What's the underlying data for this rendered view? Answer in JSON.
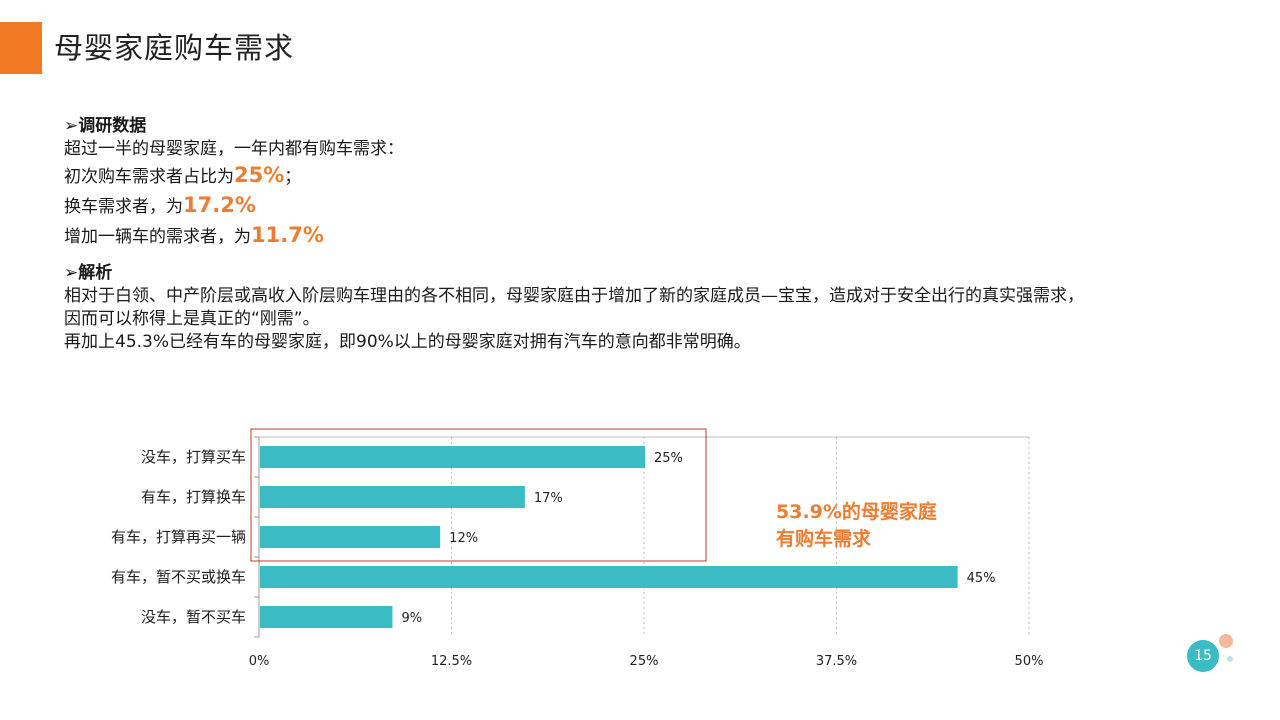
{
  "slide": {
    "title": "母婴家庭购车需求",
    "page_number": "15"
  },
  "survey": {
    "heading": "➢调研数据",
    "intro": "超过一半的母婴家庭，一年内都有购车需求：",
    "lines": [
      {
        "prefix": "初次购车需求者占比为",
        "value": "25%",
        "suffix": "；"
      },
      {
        "prefix": "换车需求者，为",
        "value": "17.2%",
        "suffix": ""
      },
      {
        "prefix": "增加一辆车的需求者，为",
        "value": "11.7%",
        "suffix": ""
      }
    ]
  },
  "analysis": {
    "heading": "➢解析",
    "lines": [
      "相对于白领、中产阶层或高收入阶层购车理由的各不相同，母婴家庭由于增加了新的家庭成员—宝宝，造成对于安全出行的真实强需求，",
      "因而可以称得上是真正的“刚需”。",
      "再加上45.3%已经有车的母婴家庭，即90%以上的母婴家庭对拥有汽车的意向都非常明确。"
    ]
  },
  "chart_data": {
    "type": "bar",
    "orientation": "horizontal",
    "categories": [
      "没车，打算买车",
      "有车，打算换车",
      "有车，打算再买一辆",
      "有车，暂不买或换车",
      "没车，暂不买车"
    ],
    "values": [
      25,
      17.2,
      11.7,
      45.3,
      8.6
    ],
    "data_labels": [
      "25%",
      "17%",
      "12%",
      "45%",
      "9%"
    ],
    "xlim": [
      0,
      50
    ],
    "x_ticks": [
      0,
      12.5,
      25,
      37.5,
      50
    ],
    "x_tick_labels": [
      "0%",
      "12.5%",
      "25%",
      "37.5%",
      "50%"
    ],
    "grid": "vertical dashed",
    "bar_color": "#3bbcc4",
    "highlight_box_color": "#c0392b",
    "highlighted_categories": [
      "没车，打算买车",
      "有车，打算换车",
      "有车，打算再买一辆"
    ],
    "annotation_lines": [
      "53.9%的母婴家庭",
      "有购车需求"
    ],
    "annotation_color": "#ed7d31"
  },
  "colors": {
    "accent": "#f07a23",
    "stat": "#ed7d31",
    "bar": "#3bbcc4"
  }
}
